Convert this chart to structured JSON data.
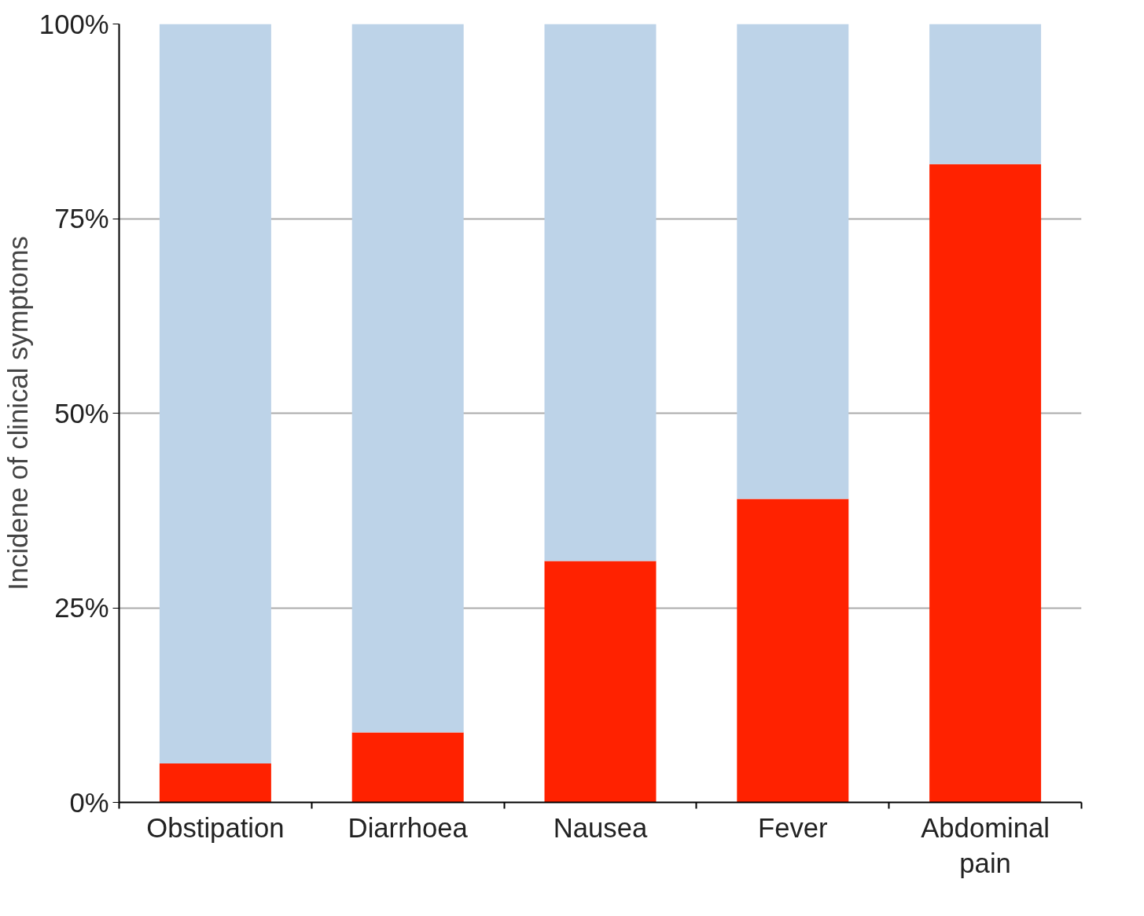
{
  "chart_data": {
    "type": "bar",
    "stacked": true,
    "ylabel": "Incidene of clinical symptoms",
    "categories": [
      "Obstipation",
      "Diarrhoea",
      "Nausea",
      "Fever",
      "Abdominal pain"
    ],
    "series": [
      {
        "color": "#ff2200",
        "values": [
          5,
          9,
          31,
          39,
          82
        ]
      },
      {
        "color": "#bdd3e8",
        "values": [
          95,
          91,
          69,
          61,
          18
        ]
      }
    ],
    "ylim": [
      0,
      100
    ],
    "yticks": [
      {
        "value": 0,
        "label": "0%"
      },
      {
        "value": 25,
        "label": "25%"
      },
      {
        "value": 50,
        "label": "50%"
      },
      {
        "value": 75,
        "label": "75%"
      },
      {
        "value": 100,
        "label": "100%"
      }
    ],
    "grid": "y"
  }
}
